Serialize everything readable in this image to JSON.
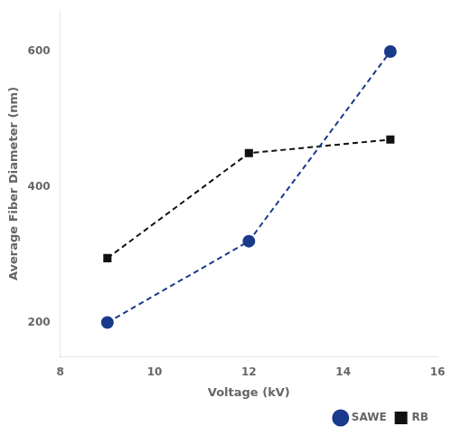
{
  "chart_data": {
    "type": "line",
    "xlabel": "Voltage (kV)",
    "ylabel": "Average Fiber Diameter (nm)",
    "x": [
      9,
      12,
      15
    ],
    "series": [
      {
        "name": "SAWE",
        "color": "#1a3a8c",
        "values": [
          200,
          320,
          600
        ],
        "marker": "circle",
        "line_style": "dashed"
      },
      {
        "name": "RB",
        "color": "#111111",
        "values": [
          295,
          450,
          470
        ],
        "marker": "square",
        "line_style": "dashed"
      }
    ],
    "xlim": [
      8,
      16
    ],
    "ylim": [
      150,
      660
    ],
    "xticks": [
      8,
      10,
      12,
      14,
      16
    ],
    "yticks": [
      200,
      400,
      600
    ],
    "grid": false,
    "legend": "lower right"
  }
}
